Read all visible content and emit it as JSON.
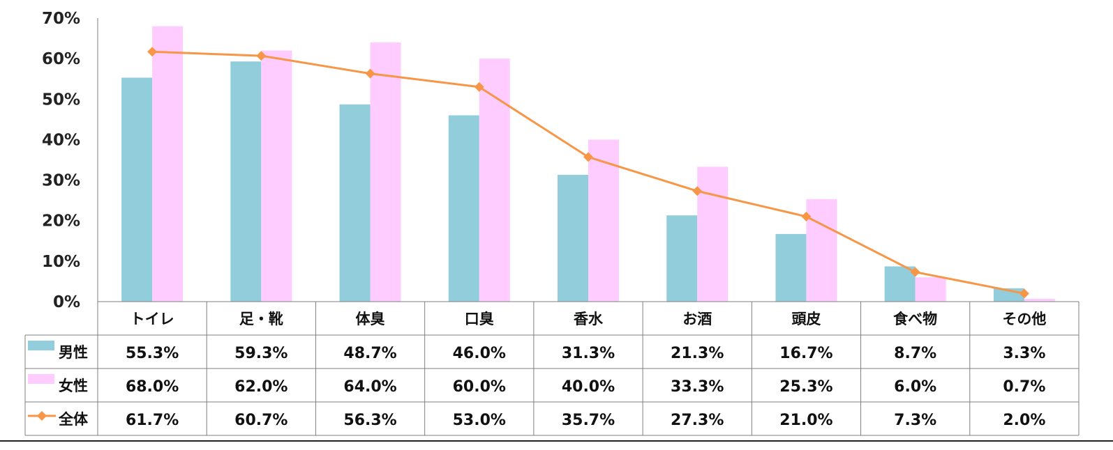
{
  "chart_data": {
    "type": "bar",
    "categories": [
      "トイレ",
      "足・靴",
      "体臭",
      "口臭",
      "香水",
      "お酒",
      "頭皮",
      "食べ物",
      "その他"
    ],
    "series": [
      {
        "name": "男性",
        "kind": "bar",
        "color": "#92CDDC",
        "values": [
          55.3,
          59.3,
          48.7,
          46.0,
          31.3,
          21.3,
          16.7,
          8.7,
          3.3
        ],
        "labels": [
          "55.3%",
          "59.3%",
          "48.7%",
          "46.0%",
          "31.3%",
          "21.3%",
          "16.7%",
          "8.7%",
          "3.3%"
        ]
      },
      {
        "name": "女性",
        "kind": "bar",
        "color": "#FFCCFF",
        "values": [
          68.0,
          62.0,
          64.0,
          60.0,
          40.0,
          33.3,
          25.3,
          6.0,
          0.7
        ],
        "labels": [
          "68.0%",
          "62.0%",
          "64.0%",
          "60.0%",
          "40.0%",
          "33.3%",
          "25.3%",
          "6.0%",
          "0.7%"
        ]
      },
      {
        "name": "全体",
        "kind": "line",
        "color": "#F79646",
        "values": [
          61.7,
          60.7,
          56.3,
          53.0,
          35.7,
          27.3,
          21.0,
          7.3,
          2.0
        ],
        "labels": [
          "61.7%",
          "60.7%",
          "56.3%",
          "53.0%",
          "35.7%",
          "27.3%",
          "21.0%",
          "7.3%",
          "2.0%"
        ]
      }
    ],
    "ylim": [
      0,
      70
    ],
    "yticks": [
      "0%",
      "10%",
      "20%",
      "30%",
      "40%",
      "50%",
      "60%",
      "70%"
    ],
    "grid": false,
    "legend": "data-table"
  }
}
